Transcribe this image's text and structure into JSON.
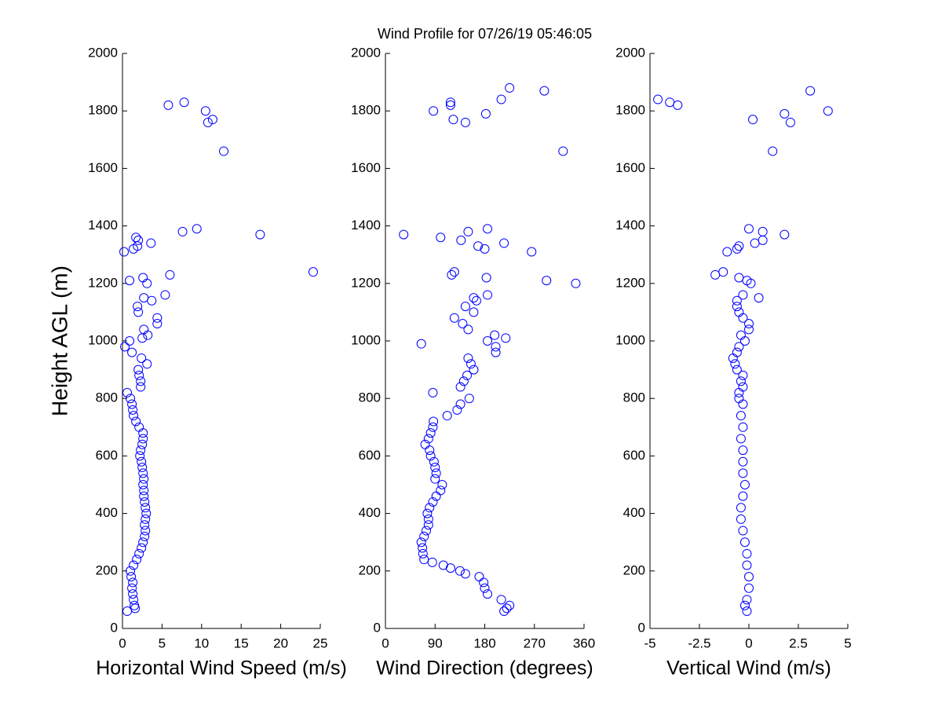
{
  "chart_data": [
    {
      "type": "scatter",
      "x_label": "Horizontal Wind Speed (m/s)",
      "y_label": "Height AGL (m)",
      "color": "#0000ff",
      "xlim": [
        0,
        25
      ],
      "xticks": [
        0,
        5,
        10,
        15,
        20,
        25
      ],
      "ylim": [
        0,
        2000
      ],
      "yticks": [
        0,
        200,
        400,
        600,
        800,
        1000,
        1200,
        1400,
        1600,
        1800,
        2000
      ],
      "x": [
        0.6,
        1.6,
        1.5,
        1.4,
        1.3,
        1.2,
        1.3,
        1.1,
        1.0,
        1.4,
        1.8,
        2.1,
        2.4,
        2.6,
        2.8,
        2.9,
        2.8,
        2.9,
        3.0,
        2.9,
        2.8,
        2.7,
        2.7,
        2.6,
        2.7,
        2.6,
        2.5,
        2.4,
        2.2,
        2.3,
        2.5,
        2.6,
        2.6,
        2.1,
        1.7,
        1.4,
        1.3,
        1.2,
        1.0,
        0.6,
        2.3,
        2.3,
        2.1,
        2.0,
        3.1,
        2.4,
        1.2,
        0.3,
        0.9,
        2.5,
        3.2,
        2.7,
        4.4,
        4.4,
        2.0,
        1.9,
        3.7,
        2.7,
        5.4,
        3.1,
        0.9,
        2.6,
        6.0,
        24.1,
        0.2,
        1.4,
        1.9,
        3.6,
        2.0,
        1.7,
        17.4,
        7.6,
        9.4,
        12.8,
        10.8,
        11.4,
        10.5,
        5.8,
        7.8
      ],
      "y": [
        60,
        70,
        80,
        100,
        120,
        140,
        160,
        180,
        200,
        220,
        240,
        260,
        280,
        300,
        320,
        340,
        360,
        380,
        400,
        420,
        440,
        460,
        480,
        500,
        520,
        540,
        560,
        580,
        600,
        620,
        640,
        660,
        680,
        700,
        720,
        740,
        760,
        780,
        800,
        820,
        840,
        860,
        880,
        900,
        920,
        940,
        960,
        980,
        1000,
        1010,
        1020,
        1040,
        1060,
        1080,
        1100,
        1120,
        1140,
        1150,
        1160,
        1200,
        1210,
        1220,
        1230,
        1240,
        1310,
        1320,
        1330,
        1340,
        1350,
        1360,
        1370,
        1380,
        1390,
        1660,
        1760,
        1770,
        1800,
        1820,
        1830
      ]
    },
    {
      "type": "scatter",
      "title": "Wind Profile for  07/26/19 05:46:05",
      "x_label": "Wind Direction (degrees)",
      "color": "#0000ff",
      "xlim": [
        0,
        360
      ],
      "xticks": [
        0,
        90,
        180,
        270,
        360
      ],
      "ylim": [
        0,
        2000
      ],
      "yticks": [
        0,
        200,
        400,
        600,
        800,
        1000,
        1200,
        1400,
        1600,
        1800,
        2000
      ],
      "x": [
        215,
        220,
        225,
        210,
        185,
        180,
        178,
        170,
        145,
        135,
        118,
        105,
        85,
        70,
        68,
        67,
        65,
        70,
        74,
        78,
        78,
        76,
        80,
        86,
        92,
        100,
        103,
        90,
        92,
        90,
        88,
        82,
        80,
        72,
        78,
        82,
        86,
        87,
        112,
        130,
        136,
        152,
        86,
        136,
        142,
        148,
        160,
        155,
        150,
        200,
        200,
        65,
        185,
        218,
        198,
        150,
        140,
        125,
        160,
        145,
        165,
        160,
        185,
        345,
        292,
        183,
        120,
        125,
        265,
        180,
        168,
        215,
        137,
        100,
        33,
        150,
        185,
        322,
        145,
        123,
        182,
        87,
        118,
        118,
        210,
        288,
        225
      ],
      "y": [
        60,
        70,
        80,
        100,
        120,
        140,
        160,
        180,
        190,
        200,
        210,
        220,
        230,
        240,
        260,
        280,
        300,
        320,
        340,
        360,
        380,
        400,
        420,
        440,
        460,
        480,
        500,
        520,
        540,
        560,
        580,
        600,
        620,
        640,
        660,
        680,
        700,
        720,
        740,
        760,
        780,
        800,
        820,
        840,
        860,
        880,
        900,
        920,
        940,
        960,
        980,
        990,
        1000,
        1010,
        1020,
        1040,
        1060,
        1080,
        1100,
        1120,
        1140,
        1150,
        1160,
        1200,
        1210,
        1220,
        1230,
        1240,
        1310,
        1320,
        1330,
        1340,
        1350,
        1360,
        1370,
        1380,
        1390,
        1660,
        1760,
        1770,
        1790,
        1800,
        1820,
        1830,
        1840,
        1870,
        1880
      ]
    },
    {
      "type": "scatter",
      "x_label": "Vertical Wind (m/s)",
      "color": "#0000ff",
      "xlim": [
        -5,
        5
      ],
      "xticks": [
        -5,
        -2.5,
        0,
        2.5,
        5
      ],
      "ylim": [
        0,
        2000
      ],
      "yticks": [
        0,
        200,
        400,
        600,
        800,
        1000,
        1200,
        1400,
        1600,
        1800,
        2000
      ],
      "x": [
        -0.1,
        -0.2,
        -0.1,
        0.0,
        0.0,
        -0.1,
        -0.1,
        -0.2,
        -0.3,
        -0.4,
        -0.4,
        -0.3,
        -0.2,
        -0.3,
        -0.3,
        -0.3,
        -0.4,
        -0.3,
        -0.4,
        -0.3,
        -0.5,
        -0.5,
        -0.3,
        -0.4,
        -0.3,
        -0.6,
        -0.7,
        -0.8,
        -0.6,
        -0.5,
        -0.2,
        -0.4,
        0.0,
        0.0,
        -0.3,
        -0.5,
        -0.6,
        -0.6,
        0.5,
        -0.3,
        0.1,
        -0.1,
        -0.5,
        -1.7,
        -1.3,
        -1.1,
        -0.6,
        -0.5,
        0.3,
        0.7,
        1.8,
        0.7,
        0.0,
        1.2,
        2.1,
        0.2,
        1.8,
        4.0,
        -3.6,
        -4.0,
        -4.6,
        3.1
      ],
      "y": [
        60,
        80,
        100,
        140,
        180,
        220,
        260,
        300,
        340,
        380,
        420,
        460,
        500,
        540,
        580,
        620,
        660,
        700,
        740,
        780,
        800,
        820,
        840,
        860,
        880,
        900,
        920,
        940,
        960,
        980,
        1000,
        1020,
        1040,
        1060,
        1080,
        1100,
        1120,
        1140,
        1150,
        1160,
        1200,
        1210,
        1220,
        1230,
        1240,
        1310,
        1320,
        1330,
        1340,
        1350,
        1370,
        1380,
        1390,
        1660,
        1760,
        1770,
        1790,
        1800,
        1820,
        1830,
        1840,
        1870
      ]
    }
  ]
}
